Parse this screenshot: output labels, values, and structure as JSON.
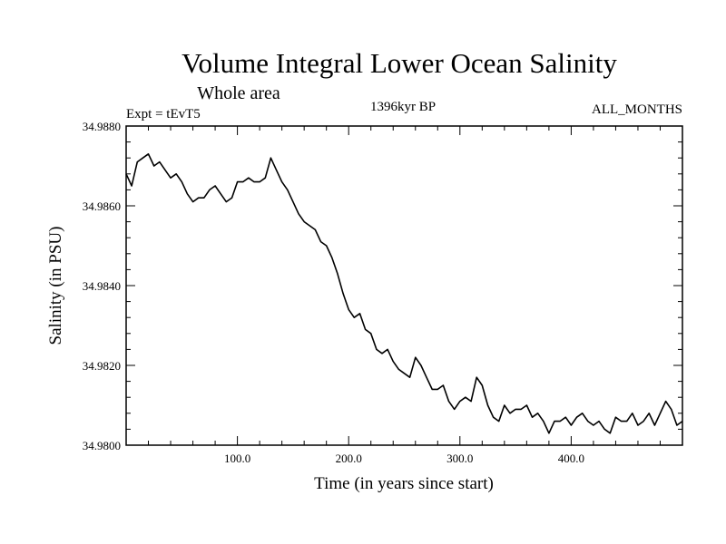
{
  "chart_data": {
    "type": "line",
    "title": "Volume Integral Lower Ocean Salinity",
    "subtitle": "Whole area",
    "experiment_label": "Expt = tEvT5",
    "period_label": "1396kyr BP",
    "months_label": "ALL_MONTHS",
    "xlabel": "Time (in years since start)",
    "ylabel": "Salinity (in PSU)",
    "xlim": [
      0,
      500
    ],
    "ylim": [
      34.98,
      34.988
    ],
    "x_ticks": [
      100,
      200,
      300,
      400
    ],
    "x_tick_labels": [
      "100.0",
      "200.0",
      "300.0",
      "400.0"
    ],
    "y_ticks": [
      34.98,
      34.982,
      34.984,
      34.986,
      34.988
    ],
    "y_tick_labels": [
      "34.9800",
      "34.9820",
      "34.9840",
      "34.9860",
      "34.9880"
    ],
    "series": [
      {
        "name": "Salinity",
        "x": [
          0,
          5,
          10,
          15,
          20,
          25,
          30,
          35,
          40,
          45,
          50,
          55,
          60,
          65,
          70,
          75,
          80,
          85,
          90,
          95,
          100,
          105,
          110,
          115,
          120,
          125,
          130,
          135,
          140,
          145,
          150,
          155,
          160,
          165,
          170,
          175,
          180,
          185,
          190,
          195,
          200,
          205,
          210,
          215,
          220,
          225,
          230,
          235,
          240,
          245,
          250,
          255,
          260,
          265,
          270,
          275,
          280,
          285,
          290,
          295,
          300,
          305,
          310,
          315,
          320,
          325,
          330,
          335,
          340,
          345,
          350,
          355,
          360,
          365,
          370,
          375,
          380,
          385,
          390,
          395,
          400,
          405,
          410,
          415,
          420,
          425,
          430,
          435,
          440,
          445,
          450,
          455,
          460,
          465,
          470,
          475,
          480,
          485,
          490,
          495,
          500
        ],
        "values": [
          34.9868,
          34.9865,
          34.9871,
          34.9872,
          34.9873,
          34.987,
          34.9871,
          34.9869,
          34.9867,
          34.9868,
          34.9866,
          34.9863,
          34.9861,
          34.9862,
          34.9862,
          34.9864,
          34.9865,
          34.9863,
          34.9861,
          34.9862,
          34.9866,
          34.9866,
          34.9867,
          34.9866,
          34.9866,
          34.9867,
          34.9872,
          34.9869,
          34.9866,
          34.9864,
          34.9861,
          34.9858,
          34.9856,
          34.9855,
          34.9854,
          34.9851,
          34.985,
          34.9847,
          34.9843,
          34.9838,
          34.9834,
          34.9832,
          34.9833,
          34.9829,
          34.9828,
          34.9824,
          34.9823,
          34.9824,
          34.9821,
          34.9819,
          34.9818,
          34.9817,
          34.9822,
          34.982,
          34.9817,
          34.9814,
          34.9814,
          34.9815,
          34.9811,
          34.9809,
          34.9811,
          34.9812,
          34.9811,
          34.9817,
          34.9815,
          34.981,
          34.9807,
          34.9806,
          34.981,
          34.9808,
          34.9809,
          34.9809,
          34.981,
          34.9807,
          34.9808,
          34.9806,
          34.9803,
          34.9806,
          34.9806,
          34.9807,
          34.9805,
          34.9807,
          34.9808,
          34.9806,
          34.9805,
          34.9806,
          34.9804,
          34.9803,
          34.9807,
          34.9806,
          34.9806,
          34.9808,
          34.9805,
          34.9806,
          34.9808,
          34.9805,
          34.9808,
          34.9811,
          34.9809,
          34.9805,
          34.9806
        ]
      }
    ]
  }
}
